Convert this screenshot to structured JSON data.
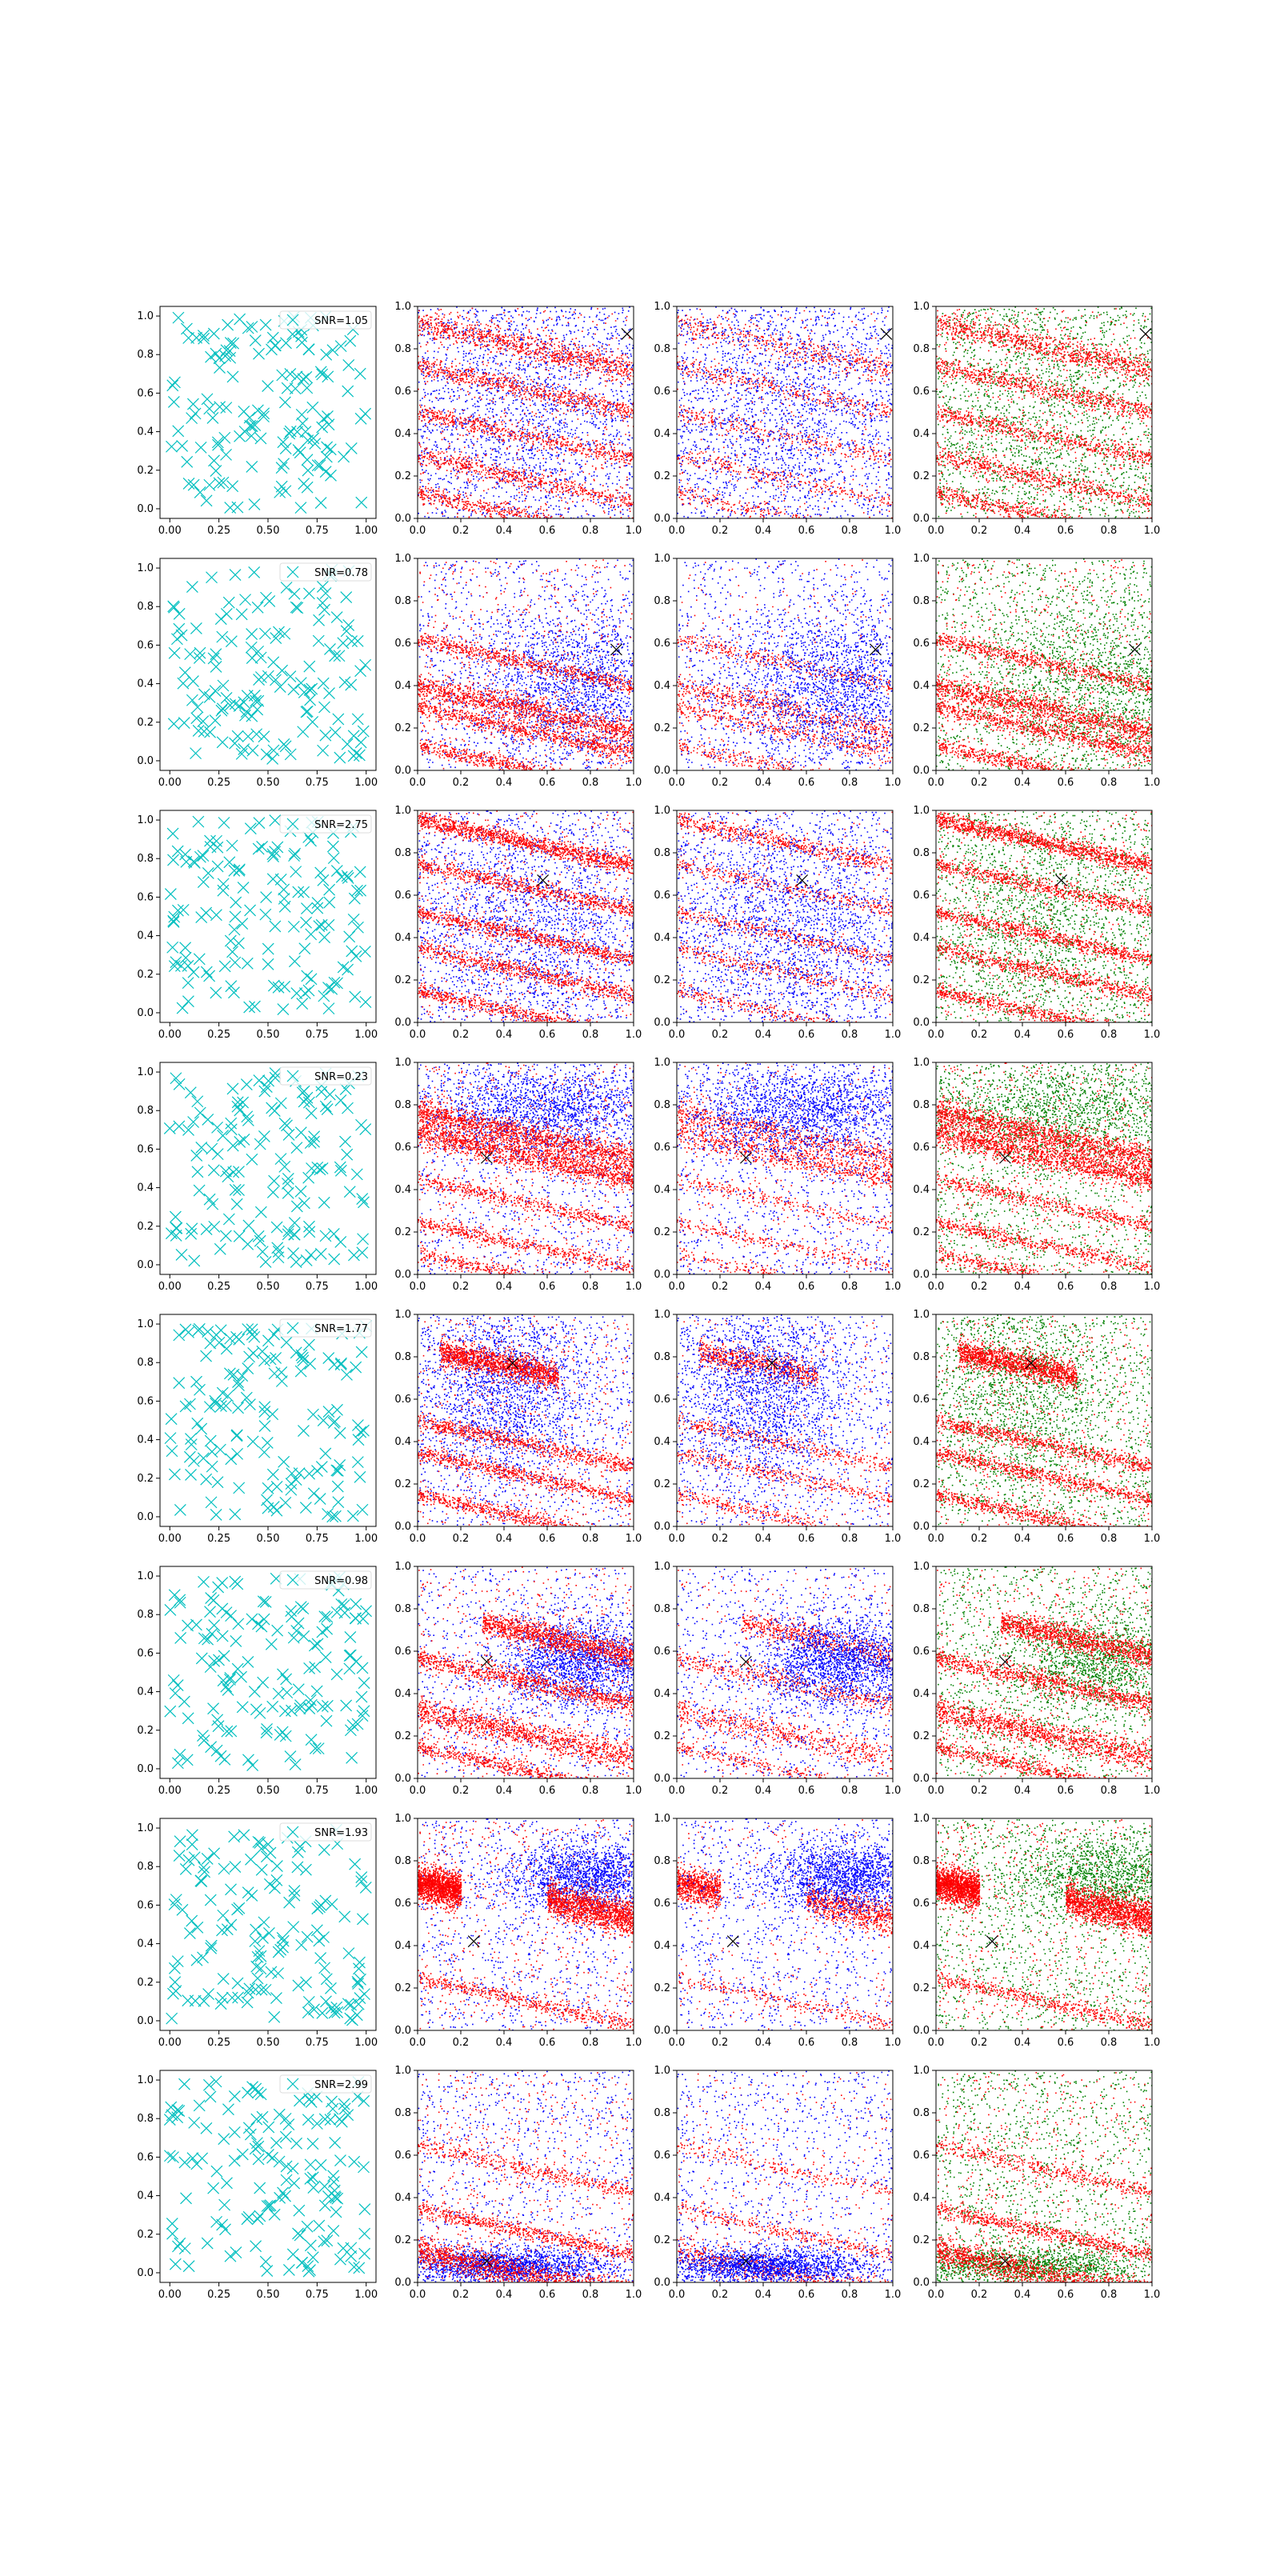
{
  "figure": {
    "rows": 8,
    "columns": 4,
    "x_tick_labels_col1": [
      "0.00",
      "0.25",
      "0.50",
      "0.75",
      "1.00"
    ],
    "x_tick_labels_other": [
      "0.0",
      "0.2",
      "0.4",
      "0.6",
      "0.8",
      "1.0"
    ],
    "y_tick_labels": [
      "0.0",
      "0.2",
      "0.4",
      "0.6",
      "0.8",
      "1.0"
    ]
  },
  "colors": {
    "cyan_marker": "#00bfbf",
    "red_points": "#ff0000",
    "blue_points": "#0000ff",
    "green_points": "#008000",
    "black_marker": "#000000"
  },
  "chart_data": [
    {
      "type": "scatter",
      "row": 1,
      "legend": "SNR=1.05",
      "xlim": [
        0,
        1
      ],
      "ylim": [
        0,
        1
      ],
      "marker": "x",
      "target": [
        0.97,
        0.87
      ],
      "stripes": [
        {
          "y0": 0.92,
          "w": 0.03,
          "d": 0.55
        },
        {
          "y0": 0.72,
          "w": 0.022,
          "d": 0.4
        },
        {
          "y0": 0.5,
          "w": 0.022,
          "d": 0.35
        },
        {
          "y0": 0.3,
          "w": 0.022,
          "d": 0.35
        },
        {
          "y0": 0.12,
          "w": 0.022,
          "d": 0.35
        }
      ],
      "blob": {
        "cx": 0.5,
        "cy": 0.5,
        "sx": 0.35,
        "sy": 0.35
      }
    },
    {
      "type": "scatter",
      "row": 2,
      "legend": "SNR=0.78",
      "xlim": [
        0,
        1
      ],
      "ylim": [
        0,
        1
      ],
      "marker": "x",
      "target": [
        0.92,
        0.57
      ],
      "stripes": [
        {
          "y0": 0.62,
          "w": 0.02,
          "d": 0.4
        },
        {
          "y0": 0.4,
          "w": 0.03,
          "d": 0.7
        },
        {
          "y0": 0.3,
          "w": 0.02,
          "d": 0.45
        },
        {
          "y0": 0.12,
          "w": 0.018,
          "d": 0.4
        }
      ],
      "blob": {
        "cx": 0.75,
        "cy": 0.4,
        "sx": 0.25,
        "sy": 0.18
      }
    },
    {
      "type": "scatter",
      "row": 3,
      "legend": "SNR=2.75",
      "xlim": [
        0,
        1
      ],
      "ylim": [
        0,
        1
      ],
      "marker": "x",
      "target": [
        0.58,
        0.67
      ],
      "stripes": [
        {
          "y0": 0.96,
          "w": 0.02,
          "d": 0.75
        },
        {
          "y0": 0.75,
          "w": 0.018,
          "d": 0.4
        },
        {
          "y0": 0.52,
          "w": 0.018,
          "d": 0.45
        },
        {
          "y0": 0.35,
          "w": 0.018,
          "d": 0.4
        },
        {
          "y0": 0.15,
          "w": 0.018,
          "d": 0.4
        }
      ],
      "blob": {
        "cx": 0.5,
        "cy": 0.45,
        "sx": 0.28,
        "sy": 0.28
      }
    },
    {
      "type": "scatter",
      "row": 4,
      "legend": "SNR=0.23",
      "xlim": [
        0,
        1
      ],
      "ylim": [
        0,
        1
      ],
      "marker": "x",
      "target": [
        0.32,
        0.55
      ],
      "stripes": [
        {
          "y0": 0.77,
          "w": 0.03,
          "d": 0.85
        },
        {
          "y0": 0.67,
          "w": 0.03,
          "d": 0.85
        },
        {
          "y0": 0.45,
          "w": 0.016,
          "d": 0.3
        },
        {
          "y0": 0.25,
          "w": 0.016,
          "d": 0.3
        },
        {
          "y0": 0.1,
          "w": 0.016,
          "d": 0.3
        }
      ],
      "blob": {
        "cx": 0.6,
        "cy": 0.78,
        "sx": 0.3,
        "sy": 0.1
      }
    },
    {
      "type": "scatter",
      "row": 5,
      "legend": "SNR=1.77",
      "xlim": [
        0,
        1
      ],
      "ylim": [
        0,
        1
      ],
      "marker": "x",
      "target": [
        0.44,
        0.77
      ],
      "stripes": [
        {
          "y0": 0.85,
          "w": 0.03,
          "d": 0.85,
          "x0": 0.1,
          "x1": 0.65
        },
        {
          "y0": 0.5,
          "w": 0.02,
          "d": 0.45
        },
        {
          "y0": 0.35,
          "w": 0.018,
          "d": 0.4
        },
        {
          "y0": 0.15,
          "w": 0.018,
          "d": 0.4
        }
      ],
      "blob": {
        "cx": 0.4,
        "cy": 0.65,
        "sx": 0.2,
        "sy": 0.22
      }
    },
    {
      "type": "scatter",
      "row": 6,
      "legend": "SNR=0.98",
      "xlim": [
        0,
        1
      ],
      "ylim": [
        0,
        1
      ],
      "marker": "x",
      "target": [
        0.32,
        0.55
      ],
      "stripes": [
        {
          "y0": 0.8,
          "w": 0.03,
          "d": 0.7,
          "x0": 0.3,
          "x1": 1.0
        },
        {
          "y0": 0.57,
          "w": 0.025,
          "d": 0.55
        },
        {
          "y0": 0.32,
          "w": 0.03,
          "d": 0.7
        },
        {
          "y0": 0.15,
          "w": 0.018,
          "d": 0.4
        }
      ],
      "blob": {
        "cx": 0.75,
        "cy": 0.55,
        "sx": 0.18,
        "sy": 0.1
      }
    },
    {
      "type": "scatter",
      "row": 7,
      "legend": "SNR=1.93",
      "xlim": [
        0,
        1
      ],
      "ylim": [
        0,
        1
      ],
      "marker": "x",
      "target": [
        0.26,
        0.42
      ],
      "stripes": [
        {
          "y0": 0.7,
          "w": 0.04,
          "d": 0.9,
          "x0": 0.0,
          "x1": 0.2
        },
        {
          "y0": 0.75,
          "w": 0.04,
          "d": 0.9,
          "x0": 0.6,
          "x1": 1.0
        },
        {
          "y0": 0.25,
          "w": 0.018,
          "d": 0.3
        }
      ],
      "blob": {
        "cx": 0.8,
        "cy": 0.73,
        "sx": 0.2,
        "sy": 0.08
      }
    },
    {
      "type": "scatter",
      "row": 8,
      "legend": "SNR=2.99",
      "xlim": [
        0,
        1
      ],
      "ylim": [
        0,
        1
      ],
      "marker": "x",
      "target": [
        0.32,
        0.1
      ],
      "stripes": [
        {
          "y0": 0.15,
          "w": 0.035,
          "d": 0.85
        },
        {
          "y0": 0.35,
          "w": 0.018,
          "d": 0.4
        },
        {
          "y0": 0.65,
          "w": 0.018,
          "d": 0.25
        }
      ],
      "blob": {
        "cx": 0.4,
        "cy": 0.08,
        "sx": 0.25,
        "sy": 0.04
      }
    }
  ]
}
